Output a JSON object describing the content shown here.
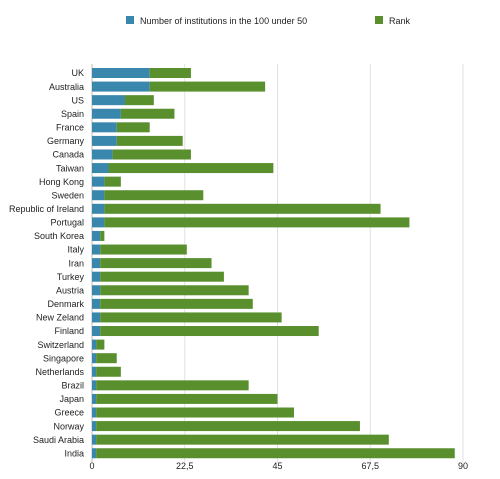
{
  "chart_data": {
    "type": "bar",
    "orientation": "horizontal",
    "stacked": true,
    "categories": [
      "UK",
      "Australia",
      "US",
      "Spain",
      "France",
      "Germany",
      "Canada",
      "Taiwan",
      "Hong Kong",
      "Sweden",
      "Republic of Ireland",
      "Portugal",
      "South Korea",
      "Italy",
      "Iran",
      "Turkey",
      "Austria",
      "Denmark",
      "New Zeland",
      "Finland",
      "Switzerland",
      "Singapore",
      "Netherlands",
      "Brazil",
      "Japan",
      "Greece",
      "Norway",
      "Saudi Arabia",
      "India"
    ],
    "series": [
      {
        "name": "Number of institutions in the 100 under 50",
        "color": "#3a87ad",
        "values": [
          14,
          14,
          8,
          7,
          6,
          6,
          5,
          4,
          3,
          3,
          3,
          3,
          2,
          2,
          2,
          2,
          2,
          2,
          2,
          2,
          1,
          1,
          1,
          1,
          1,
          1,
          1,
          1,
          1
        ]
      },
      {
        "name": "Rank",
        "color": "#5a8f2e",
        "values": [
          10,
          28,
          7,
          13,
          8,
          16,
          19,
          40,
          4,
          24,
          67,
          74,
          1,
          21,
          27,
          30,
          36,
          37,
          44,
          53,
          2,
          5,
          6,
          37,
          44,
          48,
          64,
          71,
          87
        ]
      }
    ],
    "xlim": [
      0,
      90
    ],
    "xticks": [
      "0",
      "22,5",
      "45",
      "67,5",
      "90"
    ],
    "grid": "vertical",
    "legend_position": "top"
  }
}
